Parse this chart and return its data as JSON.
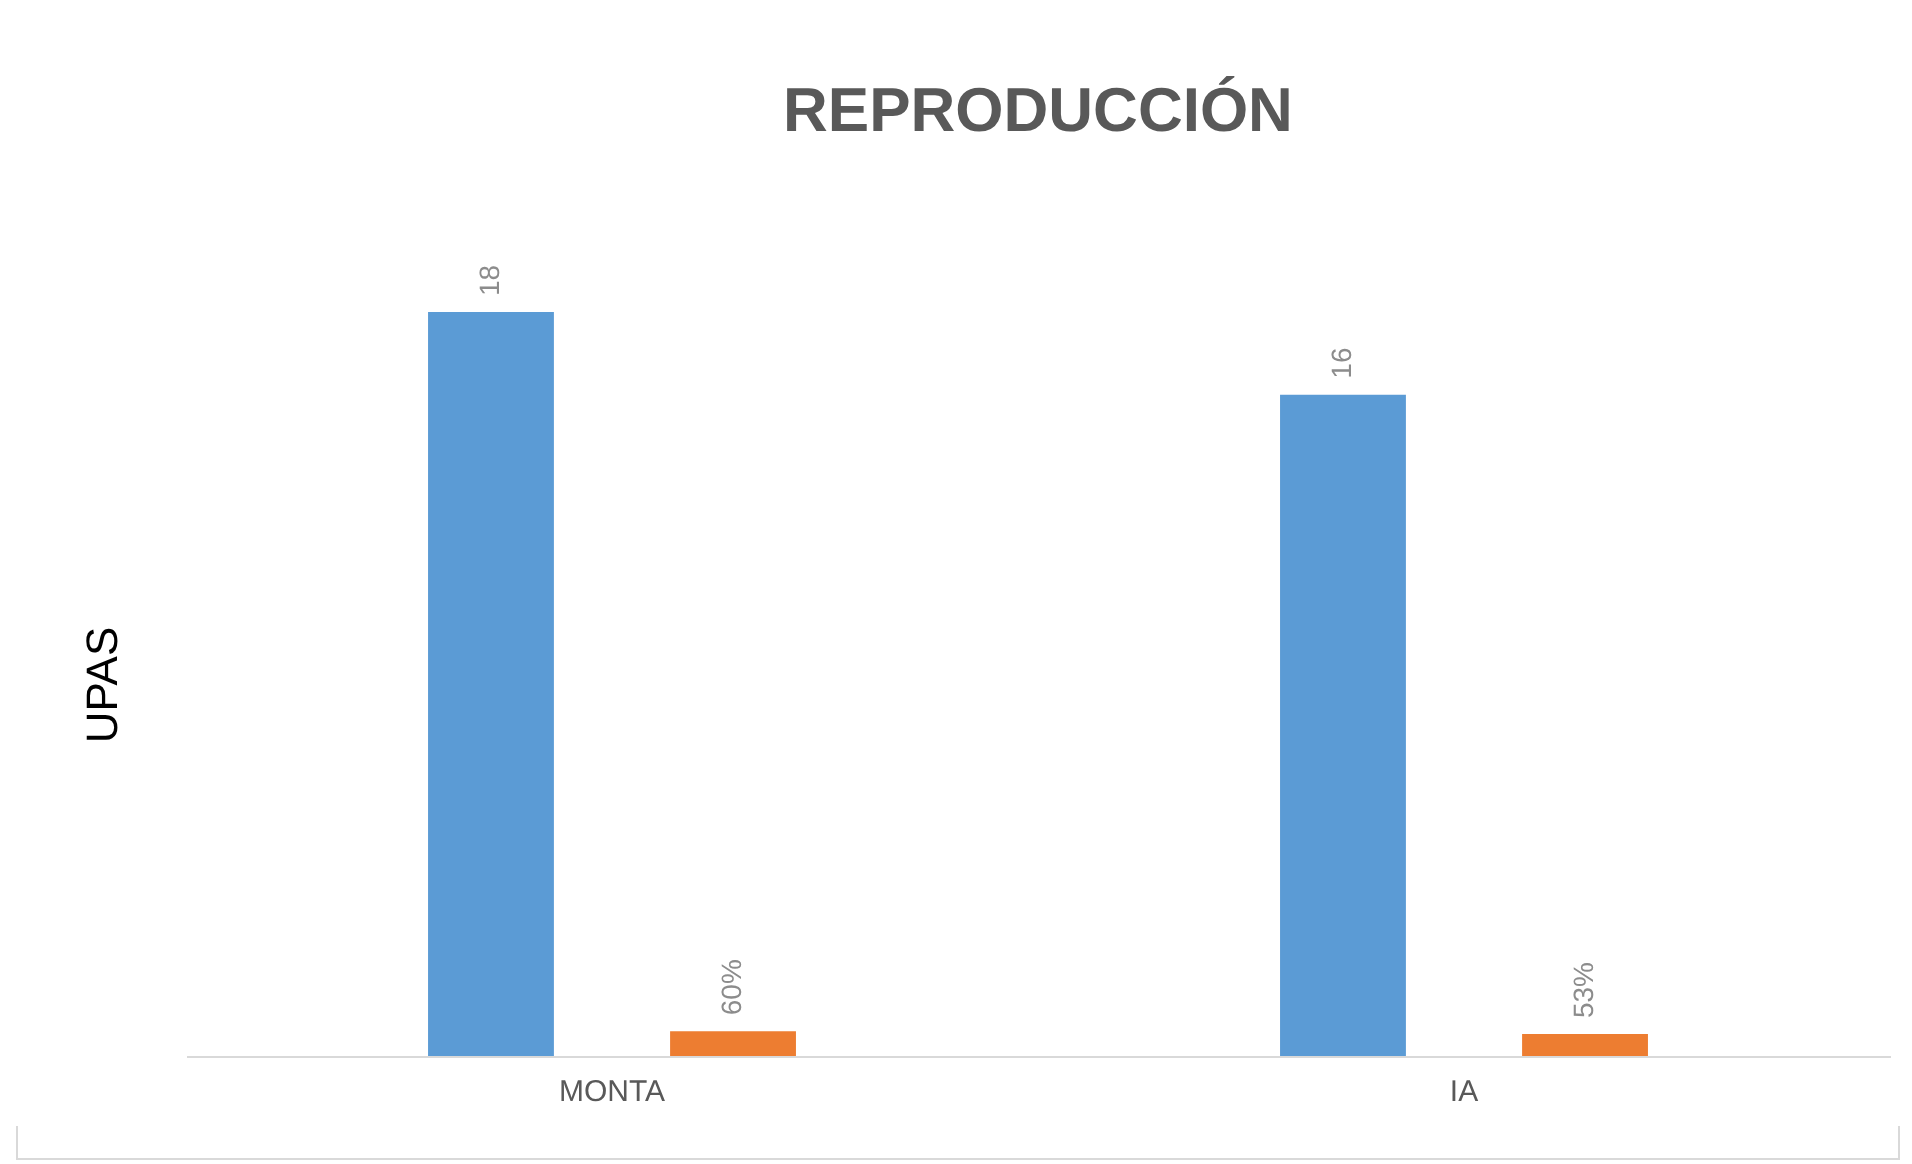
{
  "chart_data": {
    "type": "bar",
    "title": "REPRODUCCIÓN",
    "ylabel": "UPAS",
    "categories": [
      "MONTA",
      "IA"
    ],
    "series": [
      {
        "color": "#5b9bd5",
        "values": [
          18,
          16
        ],
        "value_labels": [
          "18",
          "16"
        ]
      },
      {
        "color": "#ed7d31",
        "values": [
          0.6,
          0.53
        ],
        "value_labels": [
          "60%",
          "53%"
        ]
      }
    ]
  }
}
